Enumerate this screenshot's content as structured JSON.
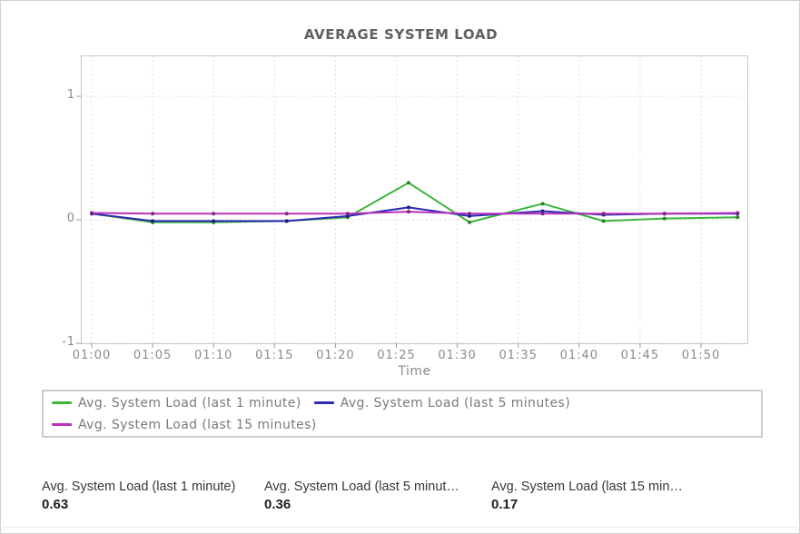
{
  "chart": {
    "title": "AVERAGE SYSTEM LOAD",
    "x_axis_label": "Time",
    "x_tick_labels": [
      "01:00",
      "01:05",
      "01:10",
      "01:15",
      "01:20",
      "01:25",
      "01:30",
      "01:35",
      "01:40",
      "01:45",
      "01:50"
    ],
    "y_tick_labels": [
      "1",
      "0",
      "-1"
    ],
    "grid_color": "#dedede",
    "border_color": "#c6c6c6",
    "tick_color": "#9a9a9a"
  },
  "legend": {
    "items": [
      {
        "label": "Avg. System Load (last 1 minute)",
        "color": "#3cb53c"
      },
      {
        "label": "Avg. System Load (last 5 minutes)",
        "color": "#2b2bb4"
      },
      {
        "label": "Avg. System Load (last 15 minutes)",
        "color": "#b832b8"
      }
    ]
  },
  "stats": [
    {
      "label": "Avg. System Load (last 1 minute)",
      "value": "0.63"
    },
    {
      "label": "Avg. System Load (last 5 minut…",
      "value": "0.36"
    },
    {
      "label": "Avg. System Load (last 15 min…",
      "value": "0.17"
    }
  ],
  "chart_data": {
    "type": "line",
    "title": "AVERAGE SYSTEM LOAD",
    "xlabel": "Time",
    "ylabel": "",
    "x": [
      "01:00",
      "01:05",
      "01:10",
      "01:16",
      "01:21",
      "01:26",
      "01:31",
      "01:37",
      "01:42",
      "01:47",
      "01:53"
    ],
    "x_minutes": [
      0,
      5,
      10,
      16,
      21,
      26,
      31,
      37,
      42,
      47,
      53
    ],
    "series": [
      {
        "name": "Avg. System Load (last 1 minute)",
        "color": "#3cb53c",
        "values": [
          0.05,
          -0.02,
          -0.02,
          -0.01,
          0.02,
          0.3,
          -0.02,
          0.13,
          -0.01,
          0.01,
          0.02
        ]
      },
      {
        "name": "Avg. System Load (last 5 minutes)",
        "color": "#2b2bb4",
        "values": [
          0.05,
          -0.01,
          -0.01,
          -0.01,
          0.03,
          0.1,
          0.03,
          0.07,
          0.04,
          0.05,
          0.05
        ]
      },
      {
        "name": "Avg. System Load (last 15 minutes)",
        "color": "#b832b8",
        "values": [
          0.055,
          0.05,
          0.05,
          0.05,
          0.05,
          0.065,
          0.05,
          0.05,
          0.05,
          0.05,
          0.055
        ]
      }
    ],
    "y_tick_values": [
      1,
      0,
      -1
    ],
    "ylim": [
      -1.01,
      1.33
    ],
    "xlim_minutes": [
      0,
      54.7
    ],
    "grid": "dashed",
    "legend_position": "bottom",
    "summary_values": {
      "last_1_minute": 0.63,
      "last_5_minutes": 0.36,
      "last_15_minutes": 0.17
    }
  }
}
